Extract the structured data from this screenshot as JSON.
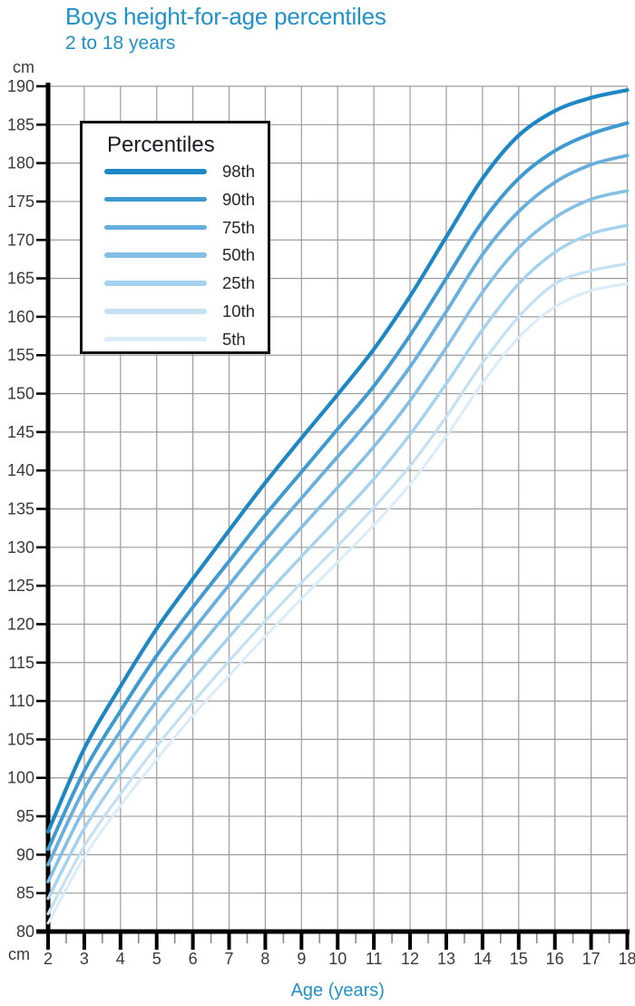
{
  "page": {
    "background": "#ffffff"
  },
  "header": {
    "title": "Boys height-for-age percentiles",
    "subtitle": "2 to 18 years"
  },
  "colors": {
    "accent": "#2191c9",
    "axis": "#000000",
    "grid": "#9c9c9c",
    "tick_label": "#3a3a3e",
    "minor_tick": "#8a8a8a",
    "legend_title": "#1b1b25",
    "legend_label": "#26272b"
  },
  "axis_labels": {
    "y_unit_top": "cm",
    "y_unit_bottom": "cm",
    "x_label": "Age (years)"
  },
  "legend": {
    "title": "Percentiles"
  },
  "chart_data": {
    "type": "line",
    "title": "Boys height-for-age percentiles",
    "subtitle": "2 to 18 years",
    "xlabel": "Age (years)",
    "ylabel": "cm",
    "xlim": [
      2,
      18
    ],
    "ylim": [
      80,
      190
    ],
    "grid": true,
    "legend_position": "top-left",
    "x": [
      2,
      3,
      4,
      5,
      6,
      7,
      8,
      9,
      10,
      11,
      12,
      13,
      14,
      15,
      16,
      17,
      18
    ],
    "x_ticks": [
      2,
      3,
      4,
      5,
      6,
      7,
      8,
      9,
      10,
      11,
      12,
      13,
      14,
      15,
      16,
      17,
      18
    ],
    "x_minor_tick_step": 0.5,
    "y_ticks": [
      80,
      85,
      90,
      95,
      100,
      105,
      110,
      115,
      120,
      125,
      130,
      135,
      140,
      145,
      150,
      155,
      160,
      165,
      170,
      175,
      180,
      185,
      190
    ],
    "series": [
      {
        "name": "98th",
        "color": "#1d87c6",
        "values": [
          93.0,
          103.8,
          111.9,
          119.4,
          125.9,
          132.2,
          138.4,
          144.2,
          149.9,
          155.8,
          162.7,
          170.4,
          178.0,
          183.6,
          186.8,
          188.5,
          189.5
        ]
      },
      {
        "name": "90th",
        "color": "#3f9ad2",
        "values": [
          90.7,
          100.9,
          108.7,
          115.9,
          122.2,
          128.2,
          134.2,
          139.8,
          145.4,
          151.0,
          157.6,
          165.0,
          172.4,
          178.0,
          181.6,
          183.8,
          185.2
        ]
      },
      {
        "name": "75th",
        "color": "#66aedd",
        "values": [
          88.7,
          98.6,
          106.1,
          113.1,
          119.2,
          125.1,
          130.9,
          136.4,
          141.8,
          147.3,
          153.5,
          160.7,
          168.1,
          173.7,
          177.5,
          179.8,
          181.0
        ]
      },
      {
        "name": "50th",
        "color": "#84c0e6",
        "values": [
          86.5,
          96.0,
          103.3,
          110.0,
          116.0,
          121.7,
          127.3,
          132.6,
          137.8,
          143.1,
          149.1,
          156.0,
          163.2,
          169.0,
          172.9,
          175.3,
          176.4
        ]
      },
      {
        "name": "25th",
        "color": "#a5d2ee",
        "values": [
          84.3,
          93.4,
          100.5,
          106.9,
          112.8,
          118.3,
          123.7,
          128.8,
          133.8,
          138.9,
          144.7,
          151.3,
          158.3,
          164.3,
          168.4,
          170.8,
          171.9
        ]
      },
      {
        "name": "10th",
        "color": "#c4e1f4",
        "values": [
          82.3,
          91.1,
          97.9,
          104.1,
          109.8,
          115.2,
          120.4,
          125.4,
          130.2,
          135.2,
          140.6,
          147.0,
          154.0,
          160.0,
          164.3,
          166.0,
          166.9
        ]
      },
      {
        "name": "5th",
        "color": "#d9ecf8",
        "values": [
          81.1,
          89.7,
          96.4,
          102.4,
          108.1,
          113.3,
          118.4,
          123.3,
          128.1,
          132.9,
          138.2,
          144.5,
          151.4,
          157.3,
          161.3,
          163.4,
          164.3
        ]
      }
    ]
  }
}
